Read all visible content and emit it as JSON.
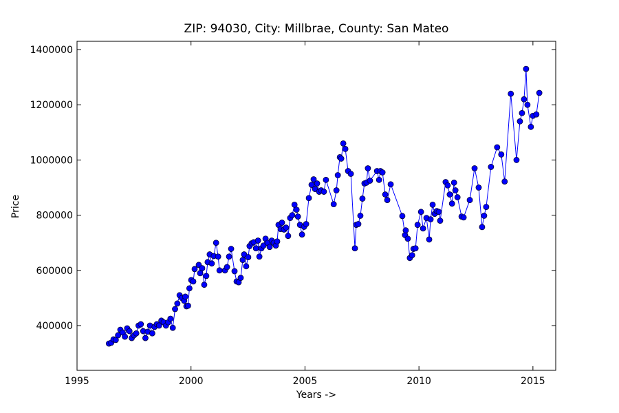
{
  "chart_data": {
    "type": "line",
    "title": "ZIP: 94030, City: Millbrae, County: San Mateo",
    "x_label": "Years ->",
    "y_label": "Price",
    "xlim": [
      1995,
      2016
    ],
    "xticks": [
      1995,
      2000,
      2005,
      2010,
      2015
    ],
    "ylim": [
      238000,
      1430000
    ],
    "yticks": [
      400000,
      600000,
      800000,
      1000000,
      1200000,
      1400000
    ],
    "grid": false,
    "x": [
      1996.4,
      1996.5,
      1996.6,
      1996.7,
      1996.8,
      1996.9,
      1997.0,
      1997.1,
      1997.2,
      1997.3,
      1997.4,
      1997.5,
      1997.6,
      1997.7,
      1997.8,
      1997.9,
      1998.0,
      1998.1,
      1998.2,
      1998.3,
      1998.4,
      1998.5,
      1998.6,
      1998.7,
      1998.8,
      1998.9,
      1999.0,
      1999.1,
      1999.2,
      1999.3,
      1999.4,
      1999.5,
      1999.6,
      1999.7,
      1999.75,
      1999.8,
      1999.87,
      1999.93,
      2000.01,
      2000.1,
      2000.16,
      2000.34,
      2000.4,
      2000.49,
      2000.58,
      2000.67,
      2000.73,
      2000.82,
      2000.91,
      2001.0,
      2001.1,
      2001.19,
      2001.25,
      2001.49,
      2001.58,
      2001.67,
      2001.76,
      2001.91,
      2002.0,
      2002.09,
      2002.18,
      2002.27,
      2002.33,
      2002.42,
      2002.51,
      2002.57,
      2002.66,
      2002.75,
      2002.85,
      2002.94,
      2003.0,
      2003.09,
      2003.18,
      2003.27,
      2003.36,
      2003.45,
      2003.54,
      2003.63,
      2003.72,
      2003.78,
      2003.84,
      2003.93,
      2003.99,
      2004.08,
      2004.17,
      2004.26,
      2004.35,
      2004.44,
      2004.54,
      2004.63,
      2004.69,
      2004.78,
      2004.87,
      2004.96,
      2005.05,
      2005.17,
      2005.29,
      2005.38,
      2005.44,
      2005.53,
      2005.62,
      2005.71,
      2005.83,
      2005.92,
      2006.26,
      2006.38,
      2006.44,
      2006.53,
      2006.59,
      2006.68,
      2006.77,
      2006.89,
      2007.01,
      2007.19,
      2007.25,
      2007.34,
      2007.43,
      2007.52,
      2007.61,
      2007.7,
      2007.76,
      2007.85,
      2008.16,
      2008.25,
      2008.31,
      2008.4,
      2008.52,
      2008.61,
      2008.76,
      2009.27,
      2009.39,
      2009.42,
      2009.51,
      2009.6,
      2009.7,
      2009.76,
      2009.85,
      2009.94,
      2010.09,
      2010.18,
      2010.33,
      2010.45,
      2010.51,
      2010.6,
      2010.69,
      2010.78,
      2010.87,
      2010.93,
      2011.17,
      2011.26,
      2011.35,
      2011.45,
      2011.54,
      2011.6,
      2011.69,
      2011.87,
      2011.96,
      2012.23,
      2012.44,
      2012.62,
      2012.77,
      2012.86,
      2012.95,
      2013.16,
      2013.43,
      2013.61,
      2013.76,
      2014.03,
      2014.28,
      2014.43,
      2014.52,
      2014.61,
      2014.7,
      2014.76,
      2014.91,
      2015.0,
      2015.15,
      2015.28
    ],
    "color": "#0000ff",
    "values": [
      335000,
      338000,
      350000,
      348000,
      365000,
      385000,
      375000,
      360000,
      390000,
      380000,
      355000,
      365000,
      372000,
      400000,
      405000,
      380000,
      355000,
      378000,
      400000,
      372000,
      395000,
      405000,
      400000,
      418000,
      412000,
      400000,
      412000,
      425000,
      392000,
      460000,
      480000,
      510000,
      500000,
      490000,
      505000,
      470000,
      472000,
      535000,
      565000,
      560000,
      605000,
      620000,
      590000,
      608000,
      548000,
      580000,
      630000,
      658000,
      625000,
      652000,
      700000,
      650000,
      600000,
      600000,
      612000,
      650000,
      678000,
      597000,
      560000,
      557000,
      573000,
      638000,
      658000,
      615000,
      648000,
      688000,
      698000,
      702000,
      680000,
      708000,
      650000,
      680000,
      690000,
      715000,
      700000,
      685000,
      708000,
      700000,
      690000,
      705000,
      765000,
      750000,
      773000,
      748000,
      755000,
      725000,
      790000,
      800000,
      838000,
      820000,
      795000,
      765000,
      730000,
      758000,
      768000,
      862000,
      910000,
      930000,
      895000,
      915000,
      885000,
      890000,
      885000,
      928000,
      840000,
      890000,
      945000,
      1010000,
      1005000,
      1060000,
      1040000,
      960000,
      950000,
      680000,
      765000,
      768000,
      798000,
      860000,
      915000,
      918000,
      970000,
      925000,
      960000,
      928000,
      960000,
      955000,
      875000,
      855000,
      912000,
      797000,
      728000,
      745000,
      715000,
      645000,
      655000,
      678000,
      680000,
      765000,
      812000,
      752000,
      790000,
      712000,
      785000,
      838000,
      805000,
      815000,
      812000,
      780000,
      920000,
      908000,
      875000,
      842000,
      918000,
      890000,
      865000,
      795000,
      792000,
      855000,
      970000,
      900000,
      757000,
      798000,
      830000,
      975000,
      1046000,
      1020000,
      922000,
      1240000,
      1000000,
      1140000,
      1170000,
      1220000,
      1330000,
      1200000,
      1120000,
      1160000,
      1165000,
      1243000
    ]
  }
}
